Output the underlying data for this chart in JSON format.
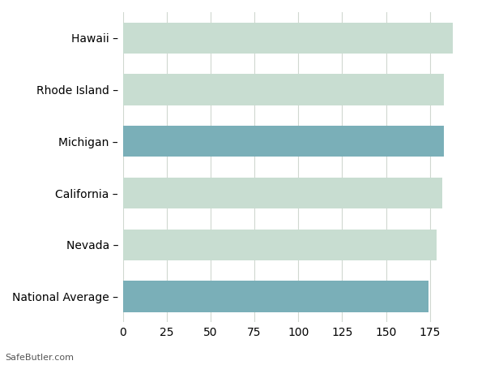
{
  "categories": [
    "Hawaii",
    "Rhode Island",
    "Michigan",
    "California",
    "Nevada",
    "National Average"
  ],
  "values": [
    188,
    183,
    183,
    182,
    179,
    174
  ],
  "bar_colors": [
    "#c8ddd1",
    "#c8ddd1",
    "#7aafb8",
    "#c8ddd1",
    "#c8ddd1",
    "#7aafb8"
  ],
  "background_color": "#ffffff",
  "grid_color": "#d0d8d0",
  "xlim": [
    0,
    200
  ],
  "xticks": [
    0,
    25,
    50,
    75,
    100,
    125,
    150,
    175
  ],
  "footer_text": "SafeButler.com",
  "bar_height": 0.6,
  "label_fontsize": 10,
  "tick_fontsize": 10
}
